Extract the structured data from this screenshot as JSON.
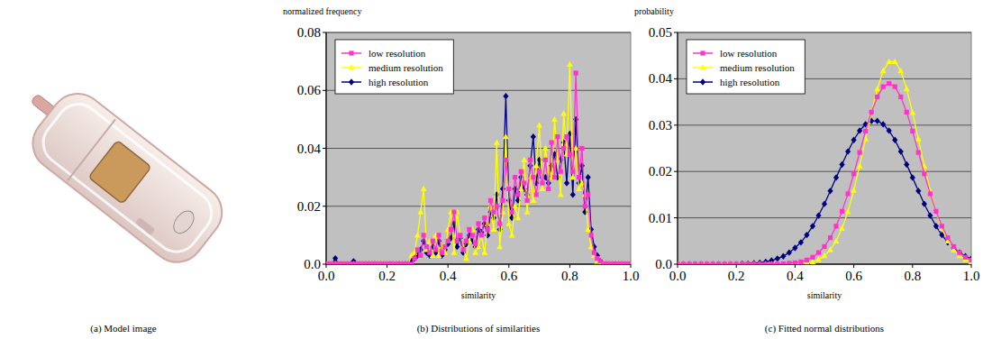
{
  "captions": [
    "(a) Model image",
    "(b) Distributions of similarities",
    "(c) Fitted normal distributions"
  ],
  "chart_data": [
    {
      "type": "line",
      "y_label": "normalized frequency",
      "x_label": "similarity",
      "x": [
        0,
        0.01,
        0.02,
        0.03,
        0.04,
        0.05,
        0.06,
        0.07,
        0.08,
        0.09,
        0.1,
        0.11,
        0.12,
        0.13,
        0.14,
        0.15,
        0.16,
        0.17,
        0.18,
        0.19,
        0.2,
        0.21,
        0.22,
        0.23,
        0.24,
        0.25,
        0.26,
        0.27,
        0.28,
        0.29,
        0.3,
        0.31,
        0.32,
        0.33,
        0.34,
        0.35,
        0.36,
        0.37,
        0.38,
        0.39,
        0.4,
        0.41,
        0.42,
        0.43,
        0.44,
        0.45,
        0.46,
        0.47,
        0.48,
        0.49,
        0.5,
        0.51,
        0.52,
        0.53,
        0.54,
        0.55,
        0.56,
        0.57,
        0.58,
        0.59,
        0.6,
        0.61,
        0.62,
        0.63,
        0.64,
        0.65,
        0.66,
        0.67,
        0.68,
        0.69,
        0.7,
        0.71,
        0.72,
        0.73,
        0.74,
        0.75,
        0.76,
        0.77,
        0.78,
        0.79,
        0.8,
        0.81,
        0.82,
        0.83,
        0.84,
        0.85,
        0.86,
        0.87,
        0.88,
        0.89,
        0.9,
        0.91,
        0.92,
        0.93,
        0.94,
        0.95,
        0.96,
        0.97,
        0.98,
        0.99,
        1
      ],
      "series": [
        {
          "name": "low resolution",
          "color": "#ff33cc",
          "marker": "square",
          "values": [
            0,
            0,
            0,
            0,
            0,
            0,
            0,
            0,
            0,
            0,
            0,
            0,
            0,
            0,
            0,
            0,
            0,
            0,
            0,
            0,
            0,
            0,
            0,
            0,
            0,
            0,
            0,
            0,
            0,
            0.002,
            0.005,
            0.003,
            0.01,
            0.006,
            0.004,
            0.008,
            0.005,
            0.01,
            0.004,
            0.006,
            0.008,
            0.012,
            0.018,
            0.008,
            0.01,
            0.005,
            0.008,
            0.012,
            0.01,
            0.007,
            0.014,
            0.01,
            0.016,
            0.012,
            0.022,
            0.018,
            0.02,
            0.014,
            0.022,
            0.036,
            0.026,
            0.018,
            0.03,
            0.024,
            0.032,
            0.028,
            0.022,
            0.036,
            0.03,
            0.024,
            0.032,
            0.028,
            0.036,
            0.026,
            0.042,
            0.03,
            0.044,
            0.032,
            0.04,
            0.044,
            0.038,
            0.032,
            0.066,
            0.03,
            0.04,
            0.02,
            0.024,
            0.01,
            0.004,
            0.002,
            0.001,
            0,
            0,
            0,
            0,
            0,
            0,
            0,
            0,
            0,
            0
          ]
        },
        {
          "name": "medium resolution",
          "color": "#ffff00",
          "marker": "triangle",
          "values": [
            0,
            0,
            0,
            0,
            0,
            0,
            0,
            0,
            0,
            0,
            0,
            0,
            0,
            0,
            0,
            0,
            0,
            0,
            0,
            0,
            0,
            0,
            0,
            0,
            0,
            0,
            0,
            0,
            0.003,
            0.004,
            0.01,
            0.018,
            0.026,
            0.005,
            0.008,
            0.003,
            0.01,
            0.003,
            0.006,
            0.004,
            0.012,
            0.018,
            0.004,
            0.018,
            0.01,
            0.006,
            0.002,
            0.008,
            0.012,
            0.004,
            0.006,
            0.01,
            0.004,
            0.014,
            0.02,
            0.012,
            0.042,
            0.006,
            0.018,
            0.044,
            0.014,
            0.01,
            0.02,
            0.016,
            0.026,
            0.036,
            0.018,
            0.03,
            0.022,
            0.034,
            0.048,
            0.026,
            0.04,
            0.032,
            0.03,
            0.05,
            0.036,
            0.024,
            0.052,
            0.038,
            0.069,
            0.03,
            0.04,
            0.026,
            0.028,
            0.024,
            0.012,
            0.006,
            0.003,
            0.001,
            0,
            0,
            0,
            0,
            0,
            0,
            0,
            0,
            0,
            0,
            0
          ]
        },
        {
          "name": "high resolution",
          "color": "#000080",
          "marker": "diamond",
          "values": [
            0,
            0,
            0,
            0.002,
            0,
            0,
            0,
            0,
            0,
            0.001,
            0,
            0,
            0,
            0,
            0,
            0,
            0,
            0,
            0,
            0,
            0,
            0,
            0,
            0,
            0,
            0,
            0,
            0,
            0.001,
            0.002,
            0.003,
            0.005,
            0.008,
            0.004,
            0.003,
            0.006,
            0.004,
            0.008,
            0.003,
            0.005,
            0.007,
            0.009,
            0.014,
            0.006,
            0.009,
            0.004,
            0.007,
            0.01,
            0.008,
            0.006,
            0.012,
            0.011,
            0.014,
            0.01,
            0.018,
            0.016,
            0.024,
            0.012,
            0.026,
            0.058,
            0.022,
            0.016,
            0.026,
            0.022,
            0.03,
            0.026,
            0.024,
            0.034,
            0.044,
            0.028,
            0.036,
            0.03,
            0.03,
            0.028,
            0.034,
            0.038,
            0.03,
            0.036,
            0.042,
            0.028,
            0.045,
            0.024,
            0.05,
            0.028,
            0.034,
            0.018,
            0.03,
            0.012,
            0.006,
            0.003,
            0.001,
            0,
            0,
            0,
            0,
            0,
            0,
            0,
            0,
            0,
            0
          ]
        }
      ],
      "xlim": [
        0,
        1
      ],
      "ylim": [
        0,
        0.08
      ],
      "xticks": [
        {
          "value": 0,
          "label": "0.0"
        },
        0.2,
        0.4,
        0.6,
        0.8,
        {
          "value": 1,
          "label": "1.0"
        }
      ],
      "yticks": [
        {
          "value": 0,
          "label": "0.0"
        },
        0.02,
        0.04,
        0.06,
        0.08
      ],
      "grid": true,
      "legend": "upper left"
    },
    {
      "type": "line",
      "y_label": "probability",
      "x_label": "similarity",
      "x": [
        0,
        0.02,
        0.04,
        0.06,
        0.08,
        0.1,
        0.12,
        0.14,
        0.16,
        0.18,
        0.2,
        0.22,
        0.24,
        0.26,
        0.28,
        0.3,
        0.32,
        0.34,
        0.36,
        0.38,
        0.4,
        0.42,
        0.44,
        0.46,
        0.48,
        0.5,
        0.52,
        0.54,
        0.56,
        0.58,
        0.6,
        0.62,
        0.64,
        0.66,
        0.68,
        0.7,
        0.72,
        0.74,
        0.76,
        0.78,
        0.8,
        0.82,
        0.84,
        0.86,
        0.88,
        0.9,
        0.92,
        0.94,
        0.96,
        0.98,
        1
      ],
      "series": [
        {
          "name": "low resolution",
          "color": "#ff33cc",
          "marker": "square",
          "values": [
            0,
            0,
            0,
            0,
            0,
            0,
            0,
            0,
            0,
            0,
            0,
            0,
            0,
            0,
            0,
            0,
            0,
            0,
            0.0001,
            0.0002,
            0.0003,
            0.0005,
            0.0009,
            0.0015,
            0.0025,
            0.0038,
            0.0057,
            0.0082,
            0.0114,
            0.0152,
            0.0195,
            0.0241,
            0.0287,
            0.0328,
            0.0361,
            0.0383,
            0.039,
            0.0383,
            0.0361,
            0.0328,
            0.0287,
            0.0241,
            0.0195,
            0.0152,
            0.0114,
            0.0082,
            0.0057,
            0.0038,
            0.0025,
            0.0015,
            0.0009
          ]
        },
        {
          "name": "medium resolution",
          "color": "#ffff00",
          "marker": "triangle",
          "values": [
            0,
            0,
            0,
            0,
            0,
            0,
            0,
            0,
            0,
            0,
            0,
            0,
            0,
            0,
            0,
            0,
            0,
            0,
            0,
            0,
            0.0001,
            0.0001,
            0.0003,
            0.0005,
            0.001,
            0.0018,
            0.0031,
            0.005,
            0.0077,
            0.0113,
            0.0159,
            0.0212,
            0.027,
            0.0327,
            0.0378,
            0.0417,
            0.0437,
            0.0437,
            0.0417,
            0.0378,
            0.0327,
            0.027,
            0.0212,
            0.0159,
            0.0113,
            0.0077,
            0.005,
            0.0031,
            0.0018,
            0.001,
            0.0005
          ]
        },
        {
          "name": "high resolution",
          "color": "#000080",
          "marker": "diamond",
          "values": [
            0,
            0,
            0,
            0,
            0,
            0,
            0,
            0,
            0,
            0,
            0,
            0.0001,
            0.0001,
            0.0002,
            0.0003,
            0.0005,
            0.0008,
            0.0012,
            0.0017,
            0.0025,
            0.0035,
            0.0047,
            0.0063,
            0.0082,
            0.0105,
            0.013,
            0.0158,
            0.0187,
            0.0215,
            0.0243,
            0.0268,
            0.0288,
            0.0302,
            0.0309,
            0.0309,
            0.0302,
            0.0288,
            0.0268,
            0.0243,
            0.0215,
            0.0187,
            0.0158,
            0.013,
            0.0105,
            0.0082,
            0.0063,
            0.0047,
            0.0035,
            0.0025,
            0.0017,
            0.0012
          ]
        }
      ],
      "xlim": [
        0,
        1
      ],
      "ylim": [
        0,
        0.05
      ],
      "xticks": [
        {
          "value": 0,
          "label": "0.0"
        },
        0.2,
        0.4,
        0.6,
        0.8,
        {
          "value": 1,
          "label": "1.0"
        }
      ],
      "yticks": [
        {
          "value": 0,
          "label": "0.0"
        },
        0.01,
        0.02,
        0.03,
        0.04,
        0.05
      ],
      "grid": true,
      "legend": "upper left"
    }
  ]
}
